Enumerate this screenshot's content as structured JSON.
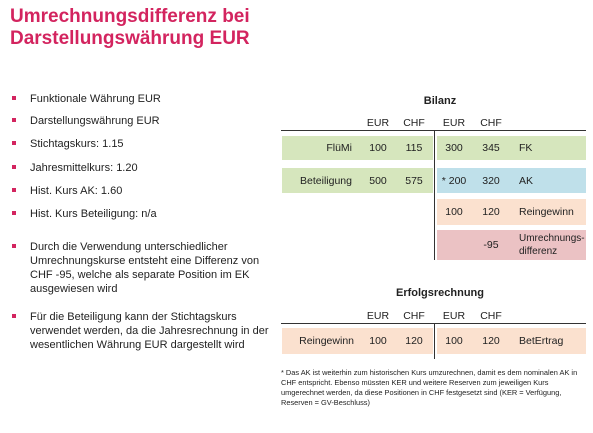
{
  "title": {
    "line1": "Umrechnungsdifferenz bei",
    "line2": "Darstellungswährung EUR"
  },
  "colors": {
    "accent": "#d3245f",
    "green": "#d6e6bd",
    "blue": "#bfe0ea",
    "peach": "#fbe1cf",
    "pink": "#ebc2c4"
  },
  "bullets": [
    "Funktionale Währung EUR",
    "Darstellungswährung EUR",
    "Stichtagskurs: 1.15",
    "Jahresmittelkurs: 1.20",
    "Hist. Kurs AK: 1.60",
    "Hist. Kurs Beteiligung: n/a",
    "Durch die Verwendung unterschiedlicher Umrechnungskurse entsteht eine Differenz von CHF -95, welche als separate Position im EK ausgewiesen wird",
    "Für die Beteiligung kann der Stichtagskurs verwendet werden, da die Jahresrechnung in der wesentlichen Währung EUR dargestellt wird"
  ],
  "bilanz": {
    "title": "Bilanz",
    "headers": [
      "EUR",
      "CHF",
      "EUR",
      "CHF"
    ],
    "rows": [
      {
        "label": "FlüMi",
        "eur_l": "100",
        "chf_l": "115",
        "eur_r": "300",
        "chf_r": "345",
        "right_label": "FK"
      },
      {
        "label": "Beteiligung",
        "eur_l": "500",
        "chf_l": "575",
        "eur_r": "* 200",
        "chf_r": "320",
        "right_label": "AK"
      },
      {
        "label": "",
        "eur_l": "",
        "chf_l": "",
        "eur_r": "100",
        "chf_r": "120",
        "right_label": "Reingewinn"
      },
      {
        "label": "",
        "eur_l": "",
        "chf_l": "",
        "eur_r": "",
        "chf_r": "-95",
        "right_label": "Umrechnungs-differenz"
      }
    ]
  },
  "erfolg": {
    "title": "Erfolgsrechnung",
    "headers": [
      "EUR",
      "CHF",
      "EUR",
      "CHF"
    ],
    "row": {
      "label": "Reingewinn",
      "eur_l": "100",
      "chf_l": "120",
      "eur_r": "100",
      "chf_r": "120",
      "right_label": "BetErtrag"
    }
  },
  "footnote": "* Das AK ist weiterhin zum historischen Kurs umzurechnen, damit es dem nominalen AK in CHF entspricht. Ebenso müssten KER und weitere Reserven zum jeweiligen Kurs umgerechnet werden, da diese Positionen in CHF festgesetzt sind (KER = Verfügung, Reserven = GV-Beschluss)"
}
